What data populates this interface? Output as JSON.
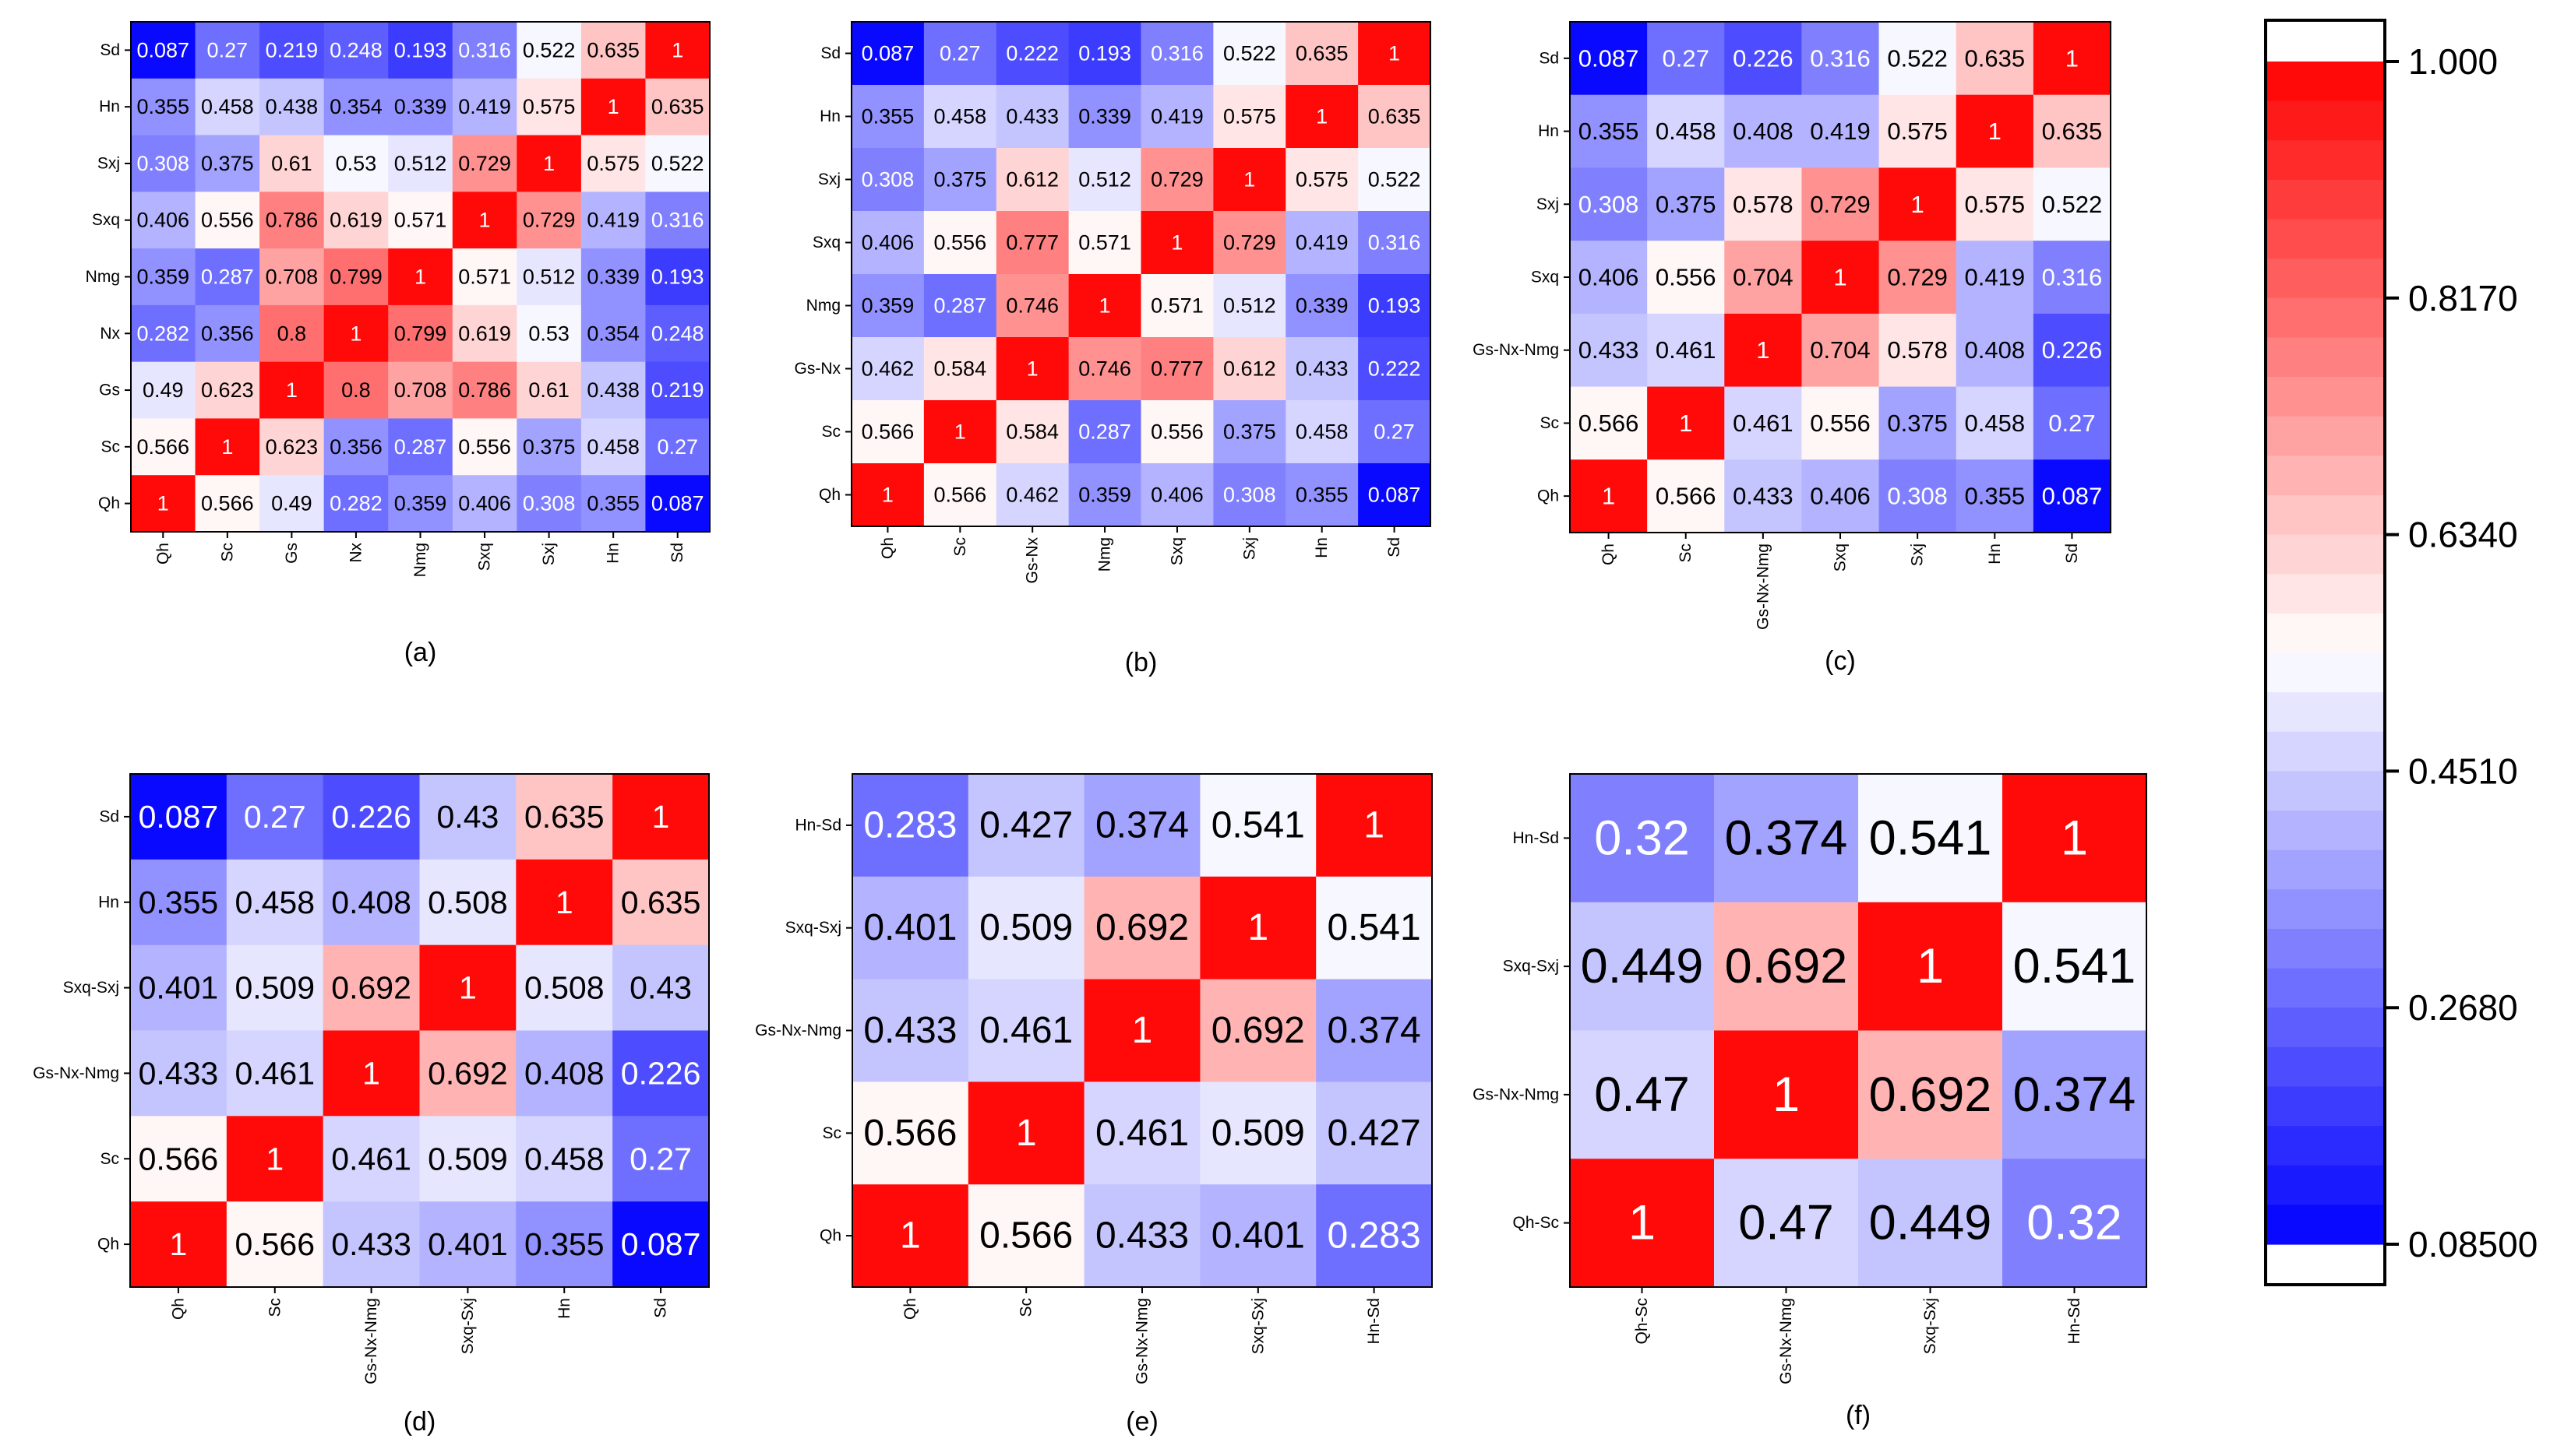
{
  "colors": {
    "low": "#0000ff",
    "mid": "#ffffff",
    "high": "#ff0000"
  },
  "colorbar": {
    "vmin": 0.085,
    "vmax": 1.0,
    "levels": 30,
    "tick_values": [
      1.0,
      0.817,
      0.634,
      0.451,
      0.268,
      0.085
    ],
    "tick_labels": [
      "1.000",
      "0.8170",
      "0.6340",
      "0.4510",
      "0.2680",
      "0.08500"
    ]
  },
  "chart_data": [
    {
      "type": "heatmap",
      "panel_label": "(a)",
      "row_labels": [
        "Sd",
        "Hn",
        "Sxj",
        "Sxq",
        "Nmg",
        "Nx",
        "Gs",
        "Sc",
        "Qh"
      ],
      "col_labels": [
        "Qh",
        "Sc",
        "Gs",
        "Nx",
        "Nmg",
        "Sxq",
        "Sxj",
        "Hn",
        "Sd"
      ],
      "values": [
        [
          0.087,
          0.27,
          0.219,
          0.248,
          0.193,
          0.316,
          0.522,
          0.635,
          1
        ],
        [
          0.355,
          0.458,
          0.438,
          0.354,
          0.339,
          0.419,
          0.575,
          1,
          0.635
        ],
        [
          0.308,
          0.375,
          0.61,
          0.53,
          0.512,
          0.729,
          1,
          0.575,
          0.522
        ],
        [
          0.406,
          0.556,
          0.786,
          0.619,
          0.571,
          1,
          0.729,
          0.419,
          0.316
        ],
        [
          0.359,
          0.287,
          0.708,
          0.799,
          1,
          0.571,
          0.512,
          0.339,
          0.193
        ],
        [
          0.282,
          0.356,
          0.8,
          1,
          0.799,
          0.619,
          0.53,
          0.354,
          0.248
        ],
        [
          0.49,
          0.623,
          1,
          0.8,
          0.708,
          0.786,
          0.61,
          0.438,
          0.219
        ],
        [
          0.566,
          1,
          0.623,
          0.356,
          0.287,
          0.556,
          0.375,
          0.458,
          0.27
        ],
        [
          1,
          0.566,
          0.49,
          0.282,
          0.359,
          0.406,
          0.308,
          0.355,
          0.087
        ]
      ]
    },
    {
      "type": "heatmap",
      "panel_label": "(b)",
      "row_labels": [
        "Sd",
        "Hn",
        "Sxj",
        "Sxq",
        "Nmg",
        "Gs-Nx",
        "Sc",
        "Qh"
      ],
      "col_labels": [
        "Qh",
        "Sc",
        "Gs-Nx",
        "Nmg",
        "Sxq",
        "Sxj",
        "Hn",
        "Sd"
      ],
      "values": [
        [
          0.087,
          0.27,
          0.222,
          0.193,
          0.316,
          0.522,
          0.635,
          1
        ],
        [
          0.355,
          0.458,
          0.433,
          0.339,
          0.419,
          0.575,
          1,
          0.635
        ],
        [
          0.308,
          0.375,
          0.612,
          0.512,
          0.729,
          1,
          0.575,
          0.522
        ],
        [
          0.406,
          0.556,
          0.777,
          0.571,
          1,
          0.729,
          0.419,
          0.316
        ],
        [
          0.359,
          0.287,
          0.746,
          1,
          0.571,
          0.512,
          0.339,
          0.193
        ],
        [
          0.462,
          0.584,
          1,
          0.746,
          0.777,
          0.612,
          0.433,
          0.222
        ],
        [
          0.566,
          1,
          0.584,
          0.287,
          0.556,
          0.375,
          0.458,
          0.27
        ],
        [
          1,
          0.566,
          0.462,
          0.359,
          0.406,
          0.308,
          0.355,
          0.087
        ]
      ]
    },
    {
      "type": "heatmap",
      "panel_label": "(c)",
      "row_labels": [
        "Sd",
        "Hn",
        "Sxj",
        "Sxq",
        "Gs-Nx-Nmg",
        "Sc",
        "Qh"
      ],
      "col_labels": [
        "Qh",
        "Sc",
        "Gs-Nx-Nmg",
        "Sxq",
        "Sxj",
        "Hn",
        "Sd"
      ],
      "values": [
        [
          0.087,
          0.27,
          0.226,
          0.316,
          0.522,
          0.635,
          1
        ],
        [
          0.355,
          0.458,
          0.408,
          0.419,
          0.575,
          1,
          0.635
        ],
        [
          0.308,
          0.375,
          0.578,
          0.729,
          1,
          0.575,
          0.522
        ],
        [
          0.406,
          0.556,
          0.704,
          1,
          0.729,
          0.419,
          0.316
        ],
        [
          0.433,
          0.461,
          1,
          0.704,
          0.578,
          0.408,
          0.226
        ],
        [
          0.566,
          1,
          0.461,
          0.556,
          0.375,
          0.458,
          0.27
        ],
        [
          1,
          0.566,
          0.433,
          0.406,
          0.308,
          0.355,
          0.087
        ]
      ]
    },
    {
      "type": "heatmap",
      "panel_label": "(d)",
      "row_labels": [
        "Sd",
        "Hn",
        "Sxq-Sxj",
        "Gs-Nx-Nmg",
        "Sc",
        "Qh"
      ],
      "col_labels": [
        "Qh",
        "Sc",
        "Gs-Nx-Nmg",
        "Sxq-Sxj",
        "Hn",
        "Sd"
      ],
      "values": [
        [
          0.087,
          0.27,
          0.226,
          0.43,
          0.635,
          1
        ],
        [
          0.355,
          0.458,
          0.408,
          0.508,
          1,
          0.635
        ],
        [
          0.401,
          0.509,
          0.692,
          1,
          0.508,
          0.43
        ],
        [
          0.433,
          0.461,
          1,
          0.692,
          0.408,
          0.226
        ],
        [
          0.566,
          1,
          0.461,
          0.509,
          0.458,
          0.27
        ],
        [
          1,
          0.566,
          0.433,
          0.401,
          0.355,
          0.087
        ]
      ]
    },
    {
      "type": "heatmap",
      "panel_label": "(e)",
      "row_labels": [
        "Hn-Sd",
        "Sxq-Sxj",
        "Gs-Nx-Nmg",
        "Sc",
        "Qh"
      ],
      "col_labels": [
        "Qh",
        "Sc",
        "Gs-Nx-Nmg",
        "Sxq-Sxj",
        "Hn-Sd"
      ],
      "values": [
        [
          0.283,
          0.427,
          0.374,
          0.541,
          1
        ],
        [
          0.401,
          0.509,
          0.692,
          1,
          0.541
        ],
        [
          0.433,
          0.461,
          1,
          0.692,
          0.374
        ],
        [
          0.566,
          1,
          0.461,
          0.509,
          0.427
        ],
        [
          1,
          0.566,
          0.433,
          0.401,
          0.283
        ]
      ]
    },
    {
      "type": "heatmap",
      "panel_label": "(f)",
      "row_labels": [
        "Hn-Sd",
        "Sxq-Sxj",
        "Gs-Nx-Nmg",
        "Qh-Sc"
      ],
      "col_labels": [
        "Qh-Sc",
        "Gs-Nx-Nmg",
        "Sxq-Sxj",
        "Hn-Sd"
      ],
      "values": [
        [
          0.32,
          0.374,
          0.541,
          1
        ],
        [
          0.449,
          0.692,
          1,
          0.541
        ],
        [
          0.47,
          1,
          0.692,
          0.374
        ],
        [
          1,
          0.47,
          0.449,
          0.32
        ]
      ]
    }
  ]
}
